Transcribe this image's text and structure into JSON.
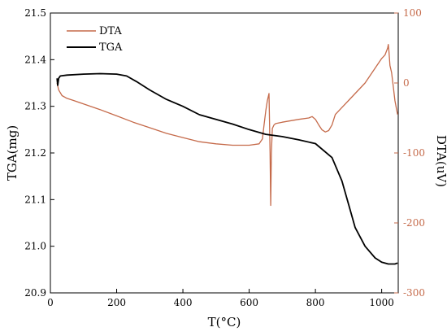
{
  "chart_data": {
    "type": "line",
    "xlabel": "T(°C)",
    "ylabel_left": "TGA(mg)",
    "ylabel_right": "DTA(uV)",
    "xlim": [
      0,
      1050
    ],
    "ylim_left": [
      20.9,
      21.5
    ],
    "ylim_right": [
      -300,
      100
    ],
    "xticks": [
      0,
      200,
      400,
      600,
      800,
      1000
    ],
    "yticks_left": [
      20.9,
      21.0,
      21.1,
      21.2,
      21.3,
      21.4,
      21.5
    ],
    "yticks_right": [
      -300,
      -200,
      -100,
      0,
      100
    ],
    "grid": false,
    "legend_position": "top-left",
    "colors": {
      "DTA": "#c56a4a",
      "TGA": "#000000",
      "right_axis": "#c56a4a"
    },
    "series": [
      {
        "name": "DTA",
        "axis": "right",
        "x": [
          20,
          25,
          35,
          50,
          70,
          100,
          150,
          200,
          250,
          300,
          350,
          400,
          450,
          500,
          550,
          600,
          630,
          640,
          645,
          650,
          655,
          660,
          663,
          665,
          667,
          670,
          675,
          680,
          700,
          750,
          780,
          790,
          800,
          810,
          820,
          830,
          840,
          850,
          860,
          900,
          950,
          1000,
          1010,
          1018,
          1020,
          1022,
          1025,
          1030,
          1035,
          1040,
          1045,
          1048
        ],
        "y": [
          0,
          -10,
          -18,
          -22,
          -25,
          -30,
          -38,
          -47,
          -56,
          -64,
          -72,
          -78,
          -84,
          -87,
          -89,
          -89,
          -87,
          -80,
          -60,
          -40,
          -25,
          -15,
          -100,
          -175,
          -100,
          -65,
          -60,
          -58,
          -56,
          -52,
          -50,
          -48,
          -52,
          -60,
          -67,
          -70,
          -68,
          -60,
          -45,
          -25,
          0,
          35,
          40,
          50,
          55,
          45,
          25,
          15,
          -5,
          -25,
          -38,
          -45
        ]
      },
      {
        "name": "TGA",
        "axis": "left",
        "x": [
          20,
          22,
          25,
          30,
          50,
          100,
          150,
          200,
          230,
          260,
          300,
          350,
          400,
          450,
          500,
          550,
          600,
          650,
          700,
          750,
          800,
          850,
          880,
          900,
          920,
          950,
          980,
          1000,
          1020,
          1040,
          1048
        ],
        "y": [
          21.36,
          21.345,
          21.36,
          21.365,
          21.367,
          21.369,
          21.37,
          21.369,
          21.365,
          21.353,
          21.335,
          21.315,
          21.3,
          21.282,
          21.272,
          21.262,
          21.25,
          21.24,
          21.235,
          21.228,
          21.22,
          21.19,
          21.14,
          21.09,
          21.04,
          21.0,
          20.975,
          20.966,
          20.962,
          20.962,
          20.964
        ]
      }
    ]
  }
}
